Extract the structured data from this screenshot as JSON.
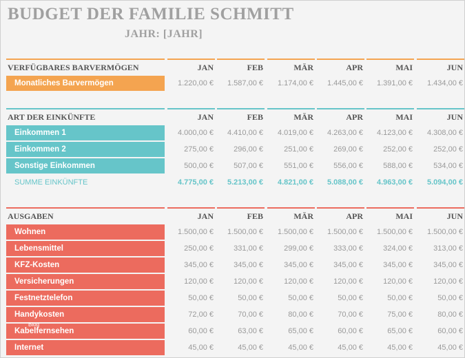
{
  "header": {
    "title": "BUDGET DER FAMILIE SCHMITT",
    "year": "JAHR: [JAHR]"
  },
  "sections": [
    {
      "header": "VERFÜGBARES BARVERMÖGEN",
      "months": [
        "JAN",
        "FEB",
        "MÄR",
        "APR",
        "MAI",
        "JUN"
      ],
      "rows": [
        {
          "label": "Monatliches Barvermögen",
          "values": [
            "1.220,00 €",
            "1.587,00 €",
            "1.174,00 €",
            "1.445,00 €",
            "1.391,00 €",
            "1.434,00 €"
          ]
        }
      ]
    },
    {
      "header": "ART DER EINKÜNFTE",
      "months": [
        "JAN",
        "FEB",
        "MÄR",
        "APR",
        "MAI",
        "JUN"
      ],
      "rows": [
        {
          "label": "Einkommen 1",
          "values": [
            "4.000,00 €",
            "4.410,00 €",
            "4.019,00 €",
            "4.263,00 €",
            "4.123,00 €",
            "4.308,00 €"
          ]
        },
        {
          "label": "Einkommen 2",
          "values": [
            "275,00 €",
            "296,00 €",
            "251,00 €",
            "269,00 €",
            "252,00 €",
            "252,00 €"
          ]
        },
        {
          "label": "Sonstige Einkommen",
          "values": [
            "500,00 €",
            "507,00 €",
            "551,00 €",
            "556,00 €",
            "588,00 €",
            "534,00 €"
          ]
        }
      ],
      "total": {
        "label": "SUMME EINKÜNFTE",
        "values": [
          "4.775,00 €",
          "5.213,00 €",
          "4.821,00 €",
          "5.088,00 €",
          "4.963,00 €",
          "5.094,00 €"
        ]
      }
    },
    {
      "header": "AUSGABEN",
      "months": [
        "JAN",
        "FEB",
        "MÄR",
        "APR",
        "MAI",
        "JUN"
      ],
      "rows": [
        {
          "label": "Wohnen",
          "values": [
            "1.500,00 €",
            "1.500,00 €",
            "1.500,00 €",
            "1.500,00 €",
            "1.500,00 €",
            "1.500,00 €"
          ]
        },
        {
          "label": "Lebensmittel",
          "values": [
            "250,00 €",
            "331,00 €",
            "299,00 €",
            "333,00 €",
            "324,00 €",
            "313,00 €"
          ]
        },
        {
          "label": "KFZ-Kosten",
          "values": [
            "345,00 €",
            "345,00 €",
            "345,00 €",
            "345,00 €",
            "345,00 €",
            "345,00 €"
          ]
        },
        {
          "label": "Versicherungen",
          "values": [
            "120,00 €",
            "120,00 €",
            "120,00 €",
            "120,00 €",
            "120,00 €",
            "120,00 €"
          ]
        },
        {
          "label": "Festnetztelefon",
          "values": [
            "50,00 €",
            "50,00 €",
            "50,00 €",
            "50,00 €",
            "50,00 €",
            "50,00 €"
          ]
        },
        {
          "label": "Handykosten",
          "values": [
            "72,00 €",
            "70,00 €",
            "80,00 €",
            "70,00 €",
            "75,00 €",
            "80,00 €"
          ]
        },
        {
          "label": "Kabelfernsehen",
          "values": [
            "60,00 €",
            "63,00 €",
            "65,00 €",
            "60,00 €",
            "65,00 €",
            "60,00 €"
          ]
        },
        {
          "label": "Internet",
          "values": [
            "45,00 €",
            "45,00 €",
            "45,00 €",
            "45,00 €",
            "45,00 €",
            "45,00 €"
          ]
        }
      ]
    }
  ],
  "watermark": "Blog"
}
